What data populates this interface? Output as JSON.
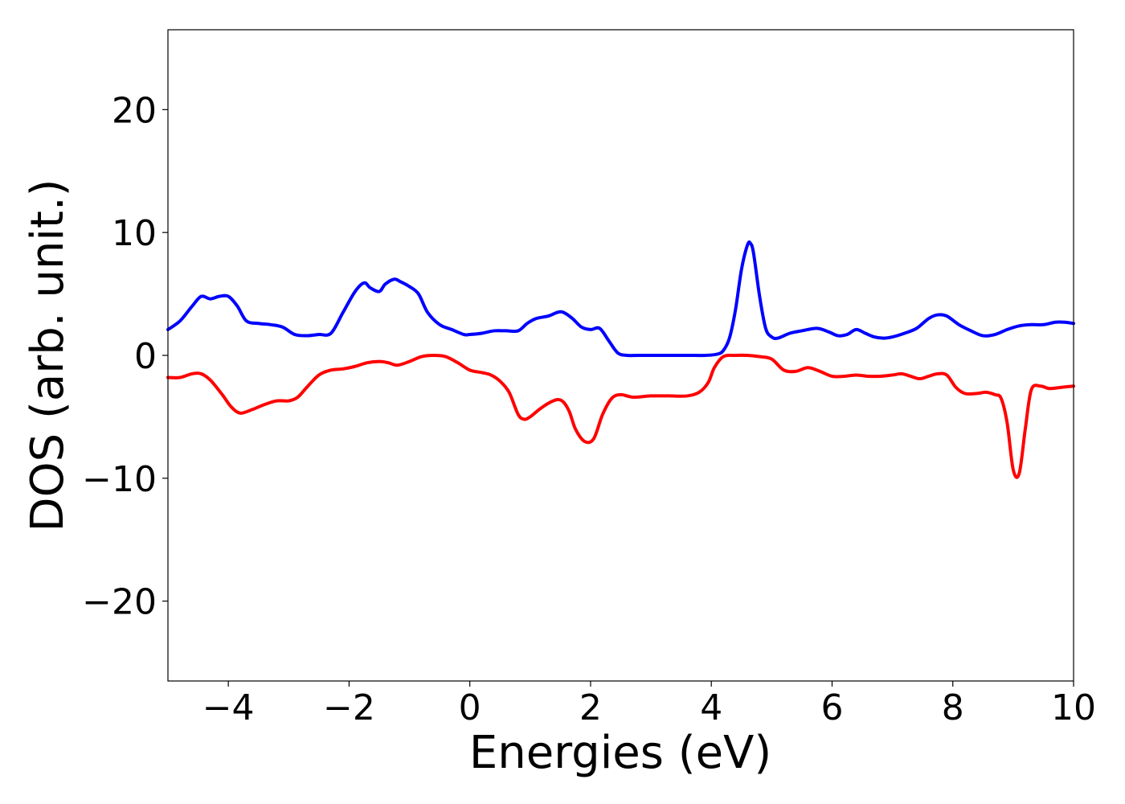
{
  "chart_data": {
    "type": "line",
    "title": "",
    "xlabel": "Energies (eV)",
    "ylabel": "DOS (arb. unit.)",
    "xlim": [
      -5,
      10
    ],
    "ylim": [
      -26.5,
      26.5
    ],
    "x_ticks": [
      -4,
      -2,
      0,
      2,
      4,
      6,
      8,
      10
    ],
    "x_tick_labels": [
      "−4",
      "−2",
      "0",
      "2",
      "4",
      "6",
      "8",
      "10"
    ],
    "y_ticks": [
      20,
      10,
      0,
      -10,
      -20
    ],
    "y_tick_labels": [
      "20",
      "10",
      "0",
      "−10",
      "−20"
    ],
    "grid": false,
    "legend": "none",
    "series": [
      {
        "color": "#0000ff",
        "x": [
          -5.0,
          -4.8,
          -4.6,
          -4.45,
          -4.3,
          -4.15,
          -4.0,
          -3.85,
          -3.7,
          -3.5,
          -3.3,
          -3.1,
          -2.9,
          -2.7,
          -2.5,
          -2.3,
          -2.1,
          -1.9,
          -1.75,
          -1.65,
          -1.5,
          -1.4,
          -1.25,
          -1.15,
          -1.0,
          -0.85,
          -0.7,
          -0.5,
          -0.3,
          -0.1,
          0.0,
          0.2,
          0.4,
          0.6,
          0.8,
          0.95,
          1.1,
          1.3,
          1.45,
          1.55,
          1.7,
          1.85,
          2.0,
          2.15,
          2.3,
          2.45,
          2.6,
          2.8,
          3.2,
          3.6,
          3.9,
          4.1,
          4.2,
          4.3,
          4.4,
          4.5,
          4.6,
          4.65,
          4.7,
          4.8,
          4.9,
          5.0,
          5.1,
          5.3,
          5.5,
          5.75,
          5.95,
          6.1,
          6.25,
          6.4,
          6.55,
          6.7,
          6.85,
          7.0,
          7.2,
          7.4,
          7.6,
          7.75,
          7.9,
          8.1,
          8.3,
          8.5,
          8.7,
          8.9,
          9.1,
          9.3,
          9.5,
          9.7,
          9.85,
          10.0
        ],
        "y": [
          2.1,
          2.8,
          4.0,
          4.8,
          4.6,
          4.8,
          4.8,
          4.0,
          2.8,
          2.6,
          2.5,
          2.3,
          1.7,
          1.6,
          1.7,
          1.8,
          3.5,
          5.2,
          5.9,
          5.5,
          5.2,
          5.8,
          6.2,
          6.0,
          5.6,
          5.0,
          3.5,
          2.5,
          2.1,
          1.7,
          1.7,
          1.8,
          2.0,
          2.0,
          2.0,
          2.6,
          3.0,
          3.2,
          3.5,
          3.5,
          3.0,
          2.3,
          2.1,
          2.2,
          1.2,
          0.2,
          0.0,
          0.0,
          0.0,
          0.0,
          0.0,
          0.1,
          0.4,
          1.4,
          3.7,
          7.0,
          9.0,
          9.1,
          8.3,
          4.8,
          2.2,
          1.5,
          1.4,
          1.8,
          2.0,
          2.2,
          1.9,
          1.6,
          1.7,
          2.1,
          1.8,
          1.5,
          1.4,
          1.5,
          1.8,
          2.2,
          3.0,
          3.3,
          3.2,
          2.5,
          2.0,
          1.6,
          1.7,
          2.1,
          2.4,
          2.5,
          2.5,
          2.7,
          2.7,
          2.6
        ]
      },
      {
        "color": "#ff0000",
        "x": [
          -5.0,
          -4.8,
          -4.6,
          -4.45,
          -4.3,
          -4.1,
          -3.95,
          -3.8,
          -3.6,
          -3.4,
          -3.2,
          -3.0,
          -2.85,
          -2.7,
          -2.5,
          -2.3,
          -2.1,
          -1.9,
          -1.7,
          -1.5,
          -1.35,
          -1.2,
          -1.0,
          -0.8,
          -0.6,
          -0.4,
          -0.2,
          0.0,
          0.2,
          0.35,
          0.5,
          0.65,
          0.8,
          0.9,
          1.0,
          1.15,
          1.3,
          1.45,
          1.55,
          1.65,
          1.75,
          1.9,
          2.05,
          2.2,
          2.35,
          2.5,
          2.7,
          3.0,
          3.3,
          3.6,
          3.8,
          3.95,
          4.05,
          4.2,
          4.4,
          4.6,
          4.8,
          5.0,
          5.2,
          5.4,
          5.6,
          5.8,
          6.0,
          6.2,
          6.4,
          6.6,
          6.8,
          7.0,
          7.15,
          7.3,
          7.45,
          7.6,
          7.75,
          7.9,
          8.05,
          8.2,
          8.4,
          8.55,
          8.7,
          8.8,
          8.9,
          9.0,
          9.1,
          9.2,
          9.3,
          9.45,
          9.6,
          9.8,
          10.0
        ],
        "y": [
          -1.8,
          -1.8,
          -1.5,
          -1.5,
          -2.0,
          -3.2,
          -4.2,
          -4.7,
          -4.4,
          -4.0,
          -3.7,
          -3.7,
          -3.4,
          -2.6,
          -1.6,
          -1.2,
          -1.1,
          -0.9,
          -0.6,
          -0.5,
          -0.6,
          -0.8,
          -0.5,
          -0.1,
          0.0,
          -0.1,
          -0.6,
          -1.2,
          -1.4,
          -1.6,
          -2.1,
          -3.0,
          -4.8,
          -5.2,
          -5.0,
          -4.4,
          -3.9,
          -3.6,
          -3.8,
          -4.6,
          -6.0,
          -7.0,
          -6.8,
          -4.8,
          -3.5,
          -3.2,
          -3.4,
          -3.3,
          -3.3,
          -3.3,
          -3.0,
          -2.2,
          -1.0,
          -0.1,
          0.0,
          0.0,
          -0.1,
          -0.3,
          -1.2,
          -1.3,
          -1.0,
          -1.3,
          -1.7,
          -1.7,
          -1.6,
          -1.7,
          -1.7,
          -1.6,
          -1.5,
          -1.7,
          -1.9,
          -1.7,
          -1.5,
          -1.6,
          -2.6,
          -3.1,
          -3.1,
          -3.0,
          -3.2,
          -3.5,
          -5.5,
          -9.3,
          -9.6,
          -6.0,
          -2.8,
          -2.5,
          -2.7,
          -2.6,
          -2.5
        ]
      }
    ]
  }
}
